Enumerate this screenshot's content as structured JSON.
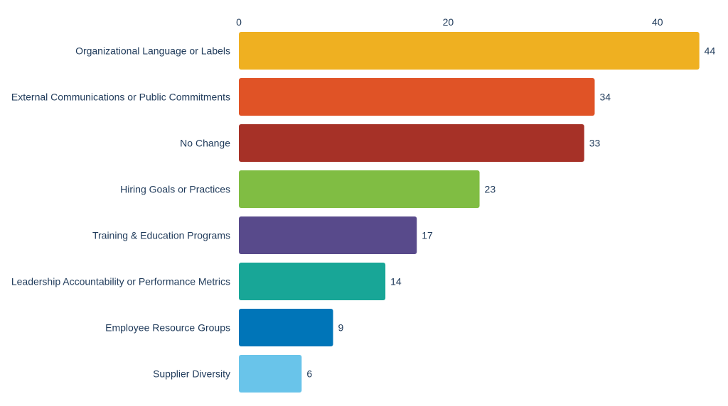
{
  "chart_data": {
    "type": "bar",
    "orientation": "horizontal",
    "title": "",
    "xlabel": "",
    "ylabel": "",
    "xlim": [
      0,
      46
    ],
    "x_ticks": [
      0,
      20,
      40
    ],
    "x_tick_labels": [
      "0",
      "20",
      "40"
    ],
    "x_axis_position": "top",
    "grid": false,
    "legend": "none",
    "categories": [
      "Organizational Language or Labels",
      "External Communications or Public Commitments",
      "No Change",
      "Hiring Goals or Practices",
      "Training & Education Programs",
      "Leadership Accountability or Performance Metrics",
      "Employee Resource Groups",
      "Supplier Diversity"
    ],
    "values": [
      44,
      34,
      33,
      23,
      17,
      14,
      9,
      6
    ],
    "data_labels": [
      "44",
      "34",
      "33",
      "23",
      "17",
      "14",
      "9",
      "6"
    ],
    "colors": [
      "#efb021",
      "#e05326",
      "#a63127",
      "#80bd43",
      "#584a8b",
      "#18a697",
      "#0075b8",
      "#69c4ea"
    ]
  },
  "text_color": "#1f3a5a"
}
